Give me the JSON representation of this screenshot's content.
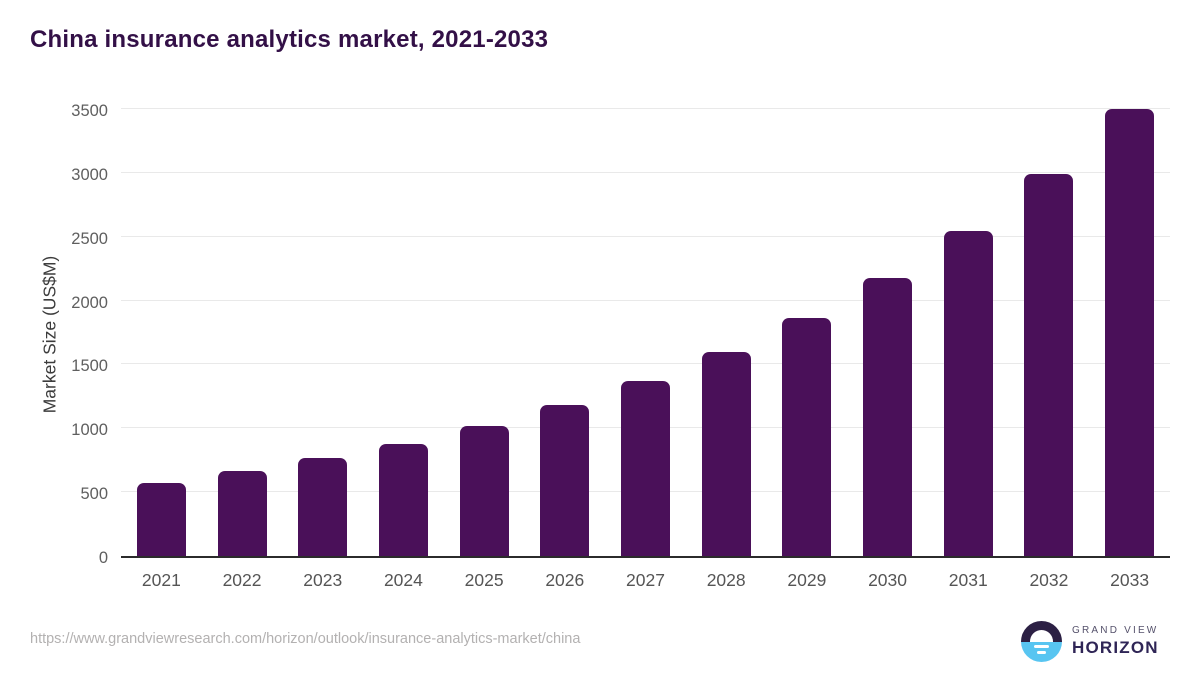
{
  "title": "China insurance analytics market, 2021-2033",
  "chart_data": {
    "type": "bar",
    "title": "China insurance analytics market, 2021-2033",
    "categories": [
      "2021",
      "2022",
      "2023",
      "2024",
      "2025",
      "2026",
      "2027",
      "2028",
      "2029",
      "2030",
      "2031",
      "2032",
      "2033"
    ],
    "values": [
      575,
      665,
      765,
      880,
      1015,
      1180,
      1370,
      1600,
      1865,
      2180,
      2545,
      2990,
      3500
    ],
    "xlabel": "",
    "ylabel": "Market Size (US$M)",
    "ylim": [
      0,
      3500
    ],
    "yticks": [
      0,
      500,
      1000,
      1500,
      2000,
      2500,
      3000,
      3500
    ],
    "grid": "horizontal",
    "legend": "none",
    "bar_color": "#4a1059",
    "gridline_color": "#e9e9e9",
    "axis_line_color": "#2b2b2b",
    "title_color": "#331047"
  },
  "footer": {
    "source_url": "https://www.grandviewresearch.com/horizon/outlook/insurance-analytics-market/china",
    "logo": {
      "line1": "GRAND VIEW",
      "line2": "HORIZON",
      "icon": "horizon-sun-icon",
      "icon_top_color": "#2c2044",
      "icon_bottom_color": "#58c5f1"
    }
  }
}
